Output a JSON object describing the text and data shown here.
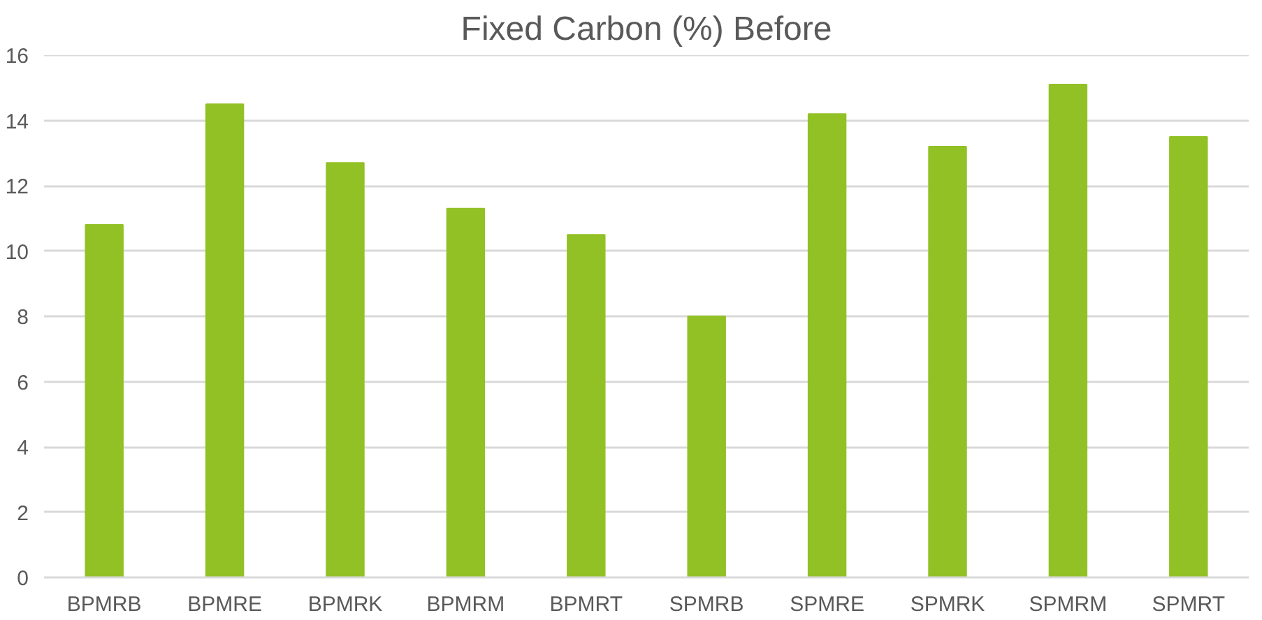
{
  "chart_data": {
    "type": "bar",
    "title": "Fixed Carbon (%) Before",
    "categories": [
      "BPMRB",
      "BPMRE",
      "BPMRK",
      "BPMRM",
      "BPMRT",
      "SPMRB",
      "SPMRE",
      "SPMRK",
      "SPMRM",
      "SPMRT"
    ],
    "values": [
      10.8,
      14.5,
      12.7,
      11.3,
      10.5,
      8.0,
      14.2,
      13.2,
      15.1,
      13.5
    ],
    "color": "#92c126",
    "ylim": [
      0,
      16
    ],
    "yticks": [
      0,
      2,
      4,
      6,
      8,
      10,
      12,
      14,
      16
    ],
    "grid": "y"
  }
}
